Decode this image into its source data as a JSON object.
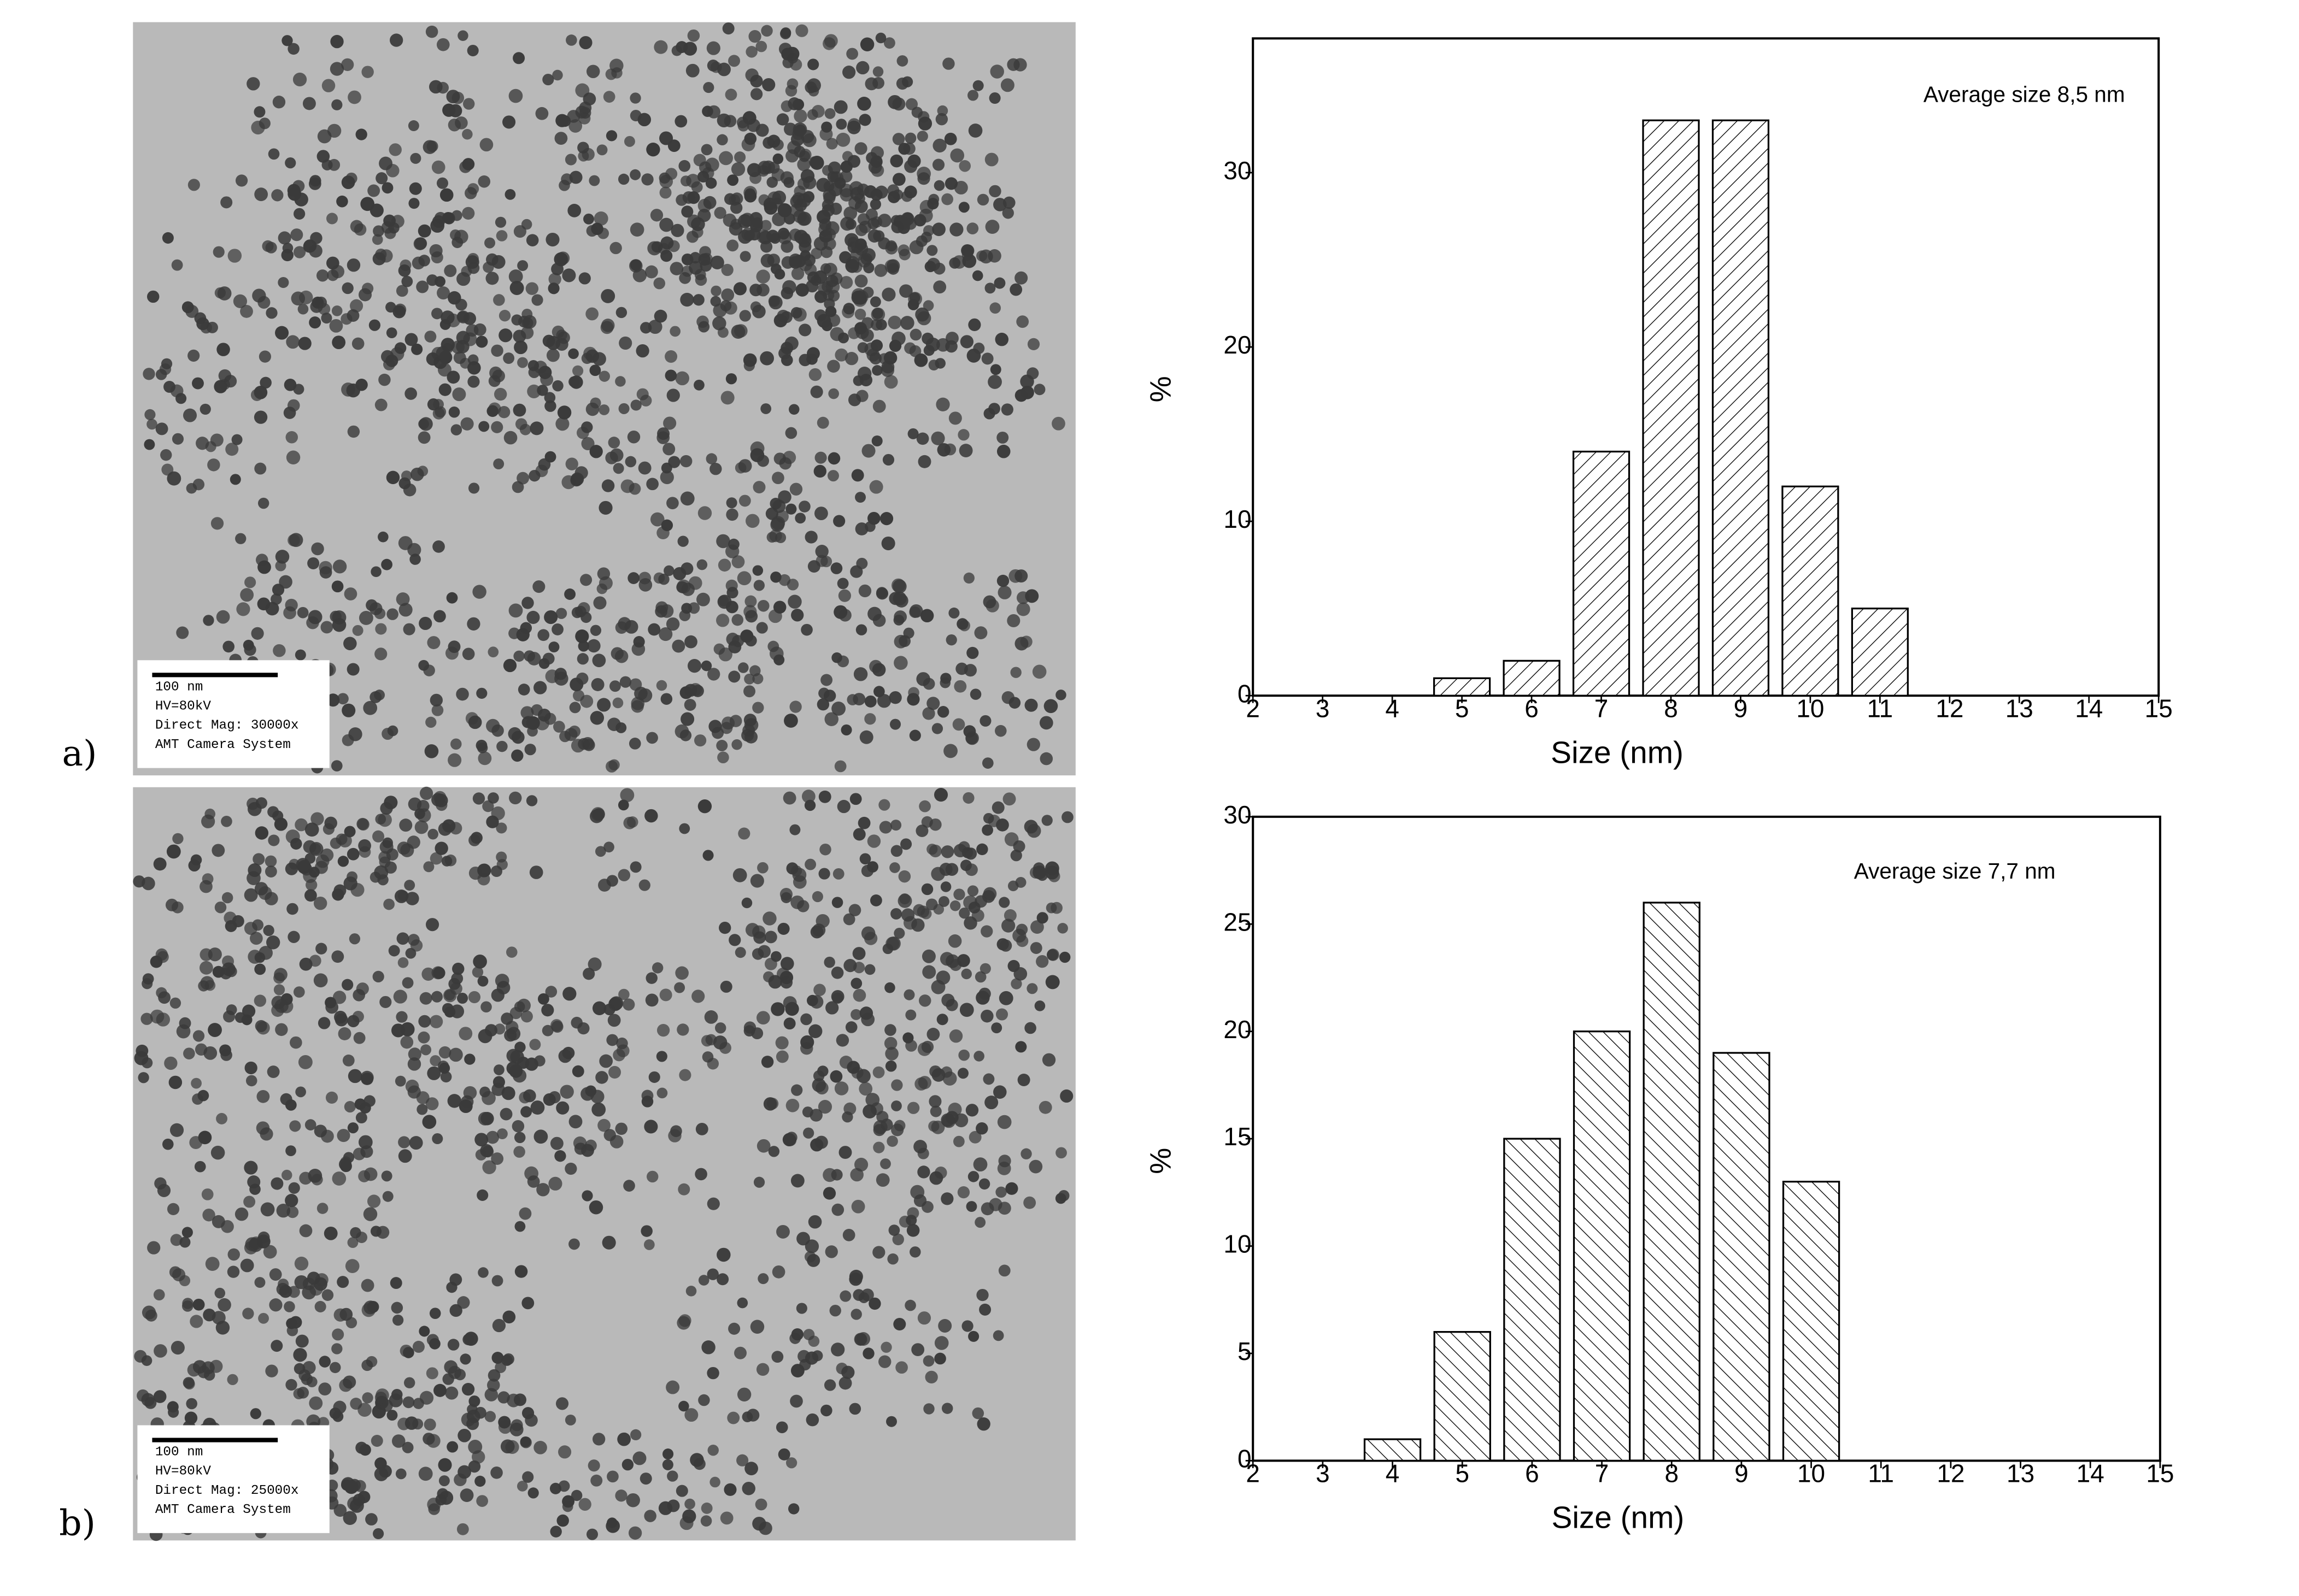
{
  "panels": [
    {
      "label": "a)",
      "caption": [
        "100 nm",
        "HV=80kV",
        "Direct Mag: 30000x",
        "AMT Camera System"
      ]
    },
    {
      "label": "b)",
      "caption": [
        "100 nm",
        "HV=80kV",
        "Direct Mag: 25000x",
        "AMT Camera System"
      ]
    }
  ],
  "chart_data": [
    {
      "type": "bar",
      "annotation": "Average size 8,5 nm",
      "x_label": "Size (nm)",
      "y_label": "%",
      "x": [
        5,
        6,
        7,
        8,
        9,
        10,
        11
      ],
      "values": [
        1,
        2,
        14,
        33,
        33,
        12,
        5
      ],
      "color": "#000000",
      "hatch": "/",
      "xlim": [
        2,
        15
      ],
      "xticks": [
        2,
        3,
        4,
        5,
        6,
        7,
        8,
        9,
        10,
        11,
        12,
        13,
        14,
        15
      ],
      "ylim": [
        0,
        37.7
      ],
      "yticks": [
        0,
        10,
        20,
        30
      ]
    },
    {
      "type": "bar",
      "annotation": "Average size 7,7 nm",
      "x_label": "Size (nm)",
      "y_label": "%",
      "x": [
        4,
        5,
        6,
        7,
        8,
        9,
        10
      ],
      "values": [
        1,
        6,
        15,
        20,
        26,
        19,
        13
      ],
      "color": "#000000",
      "hatch": "\\",
      "xlim": [
        2,
        15
      ],
      "xticks": [
        2,
        3,
        4,
        5,
        6,
        7,
        8,
        9,
        10,
        11,
        12,
        13,
        14,
        15
      ],
      "ylim": [
        0,
        30
      ],
      "yticks": [
        0,
        5,
        10,
        15,
        20,
        25,
        30
      ]
    }
  ]
}
